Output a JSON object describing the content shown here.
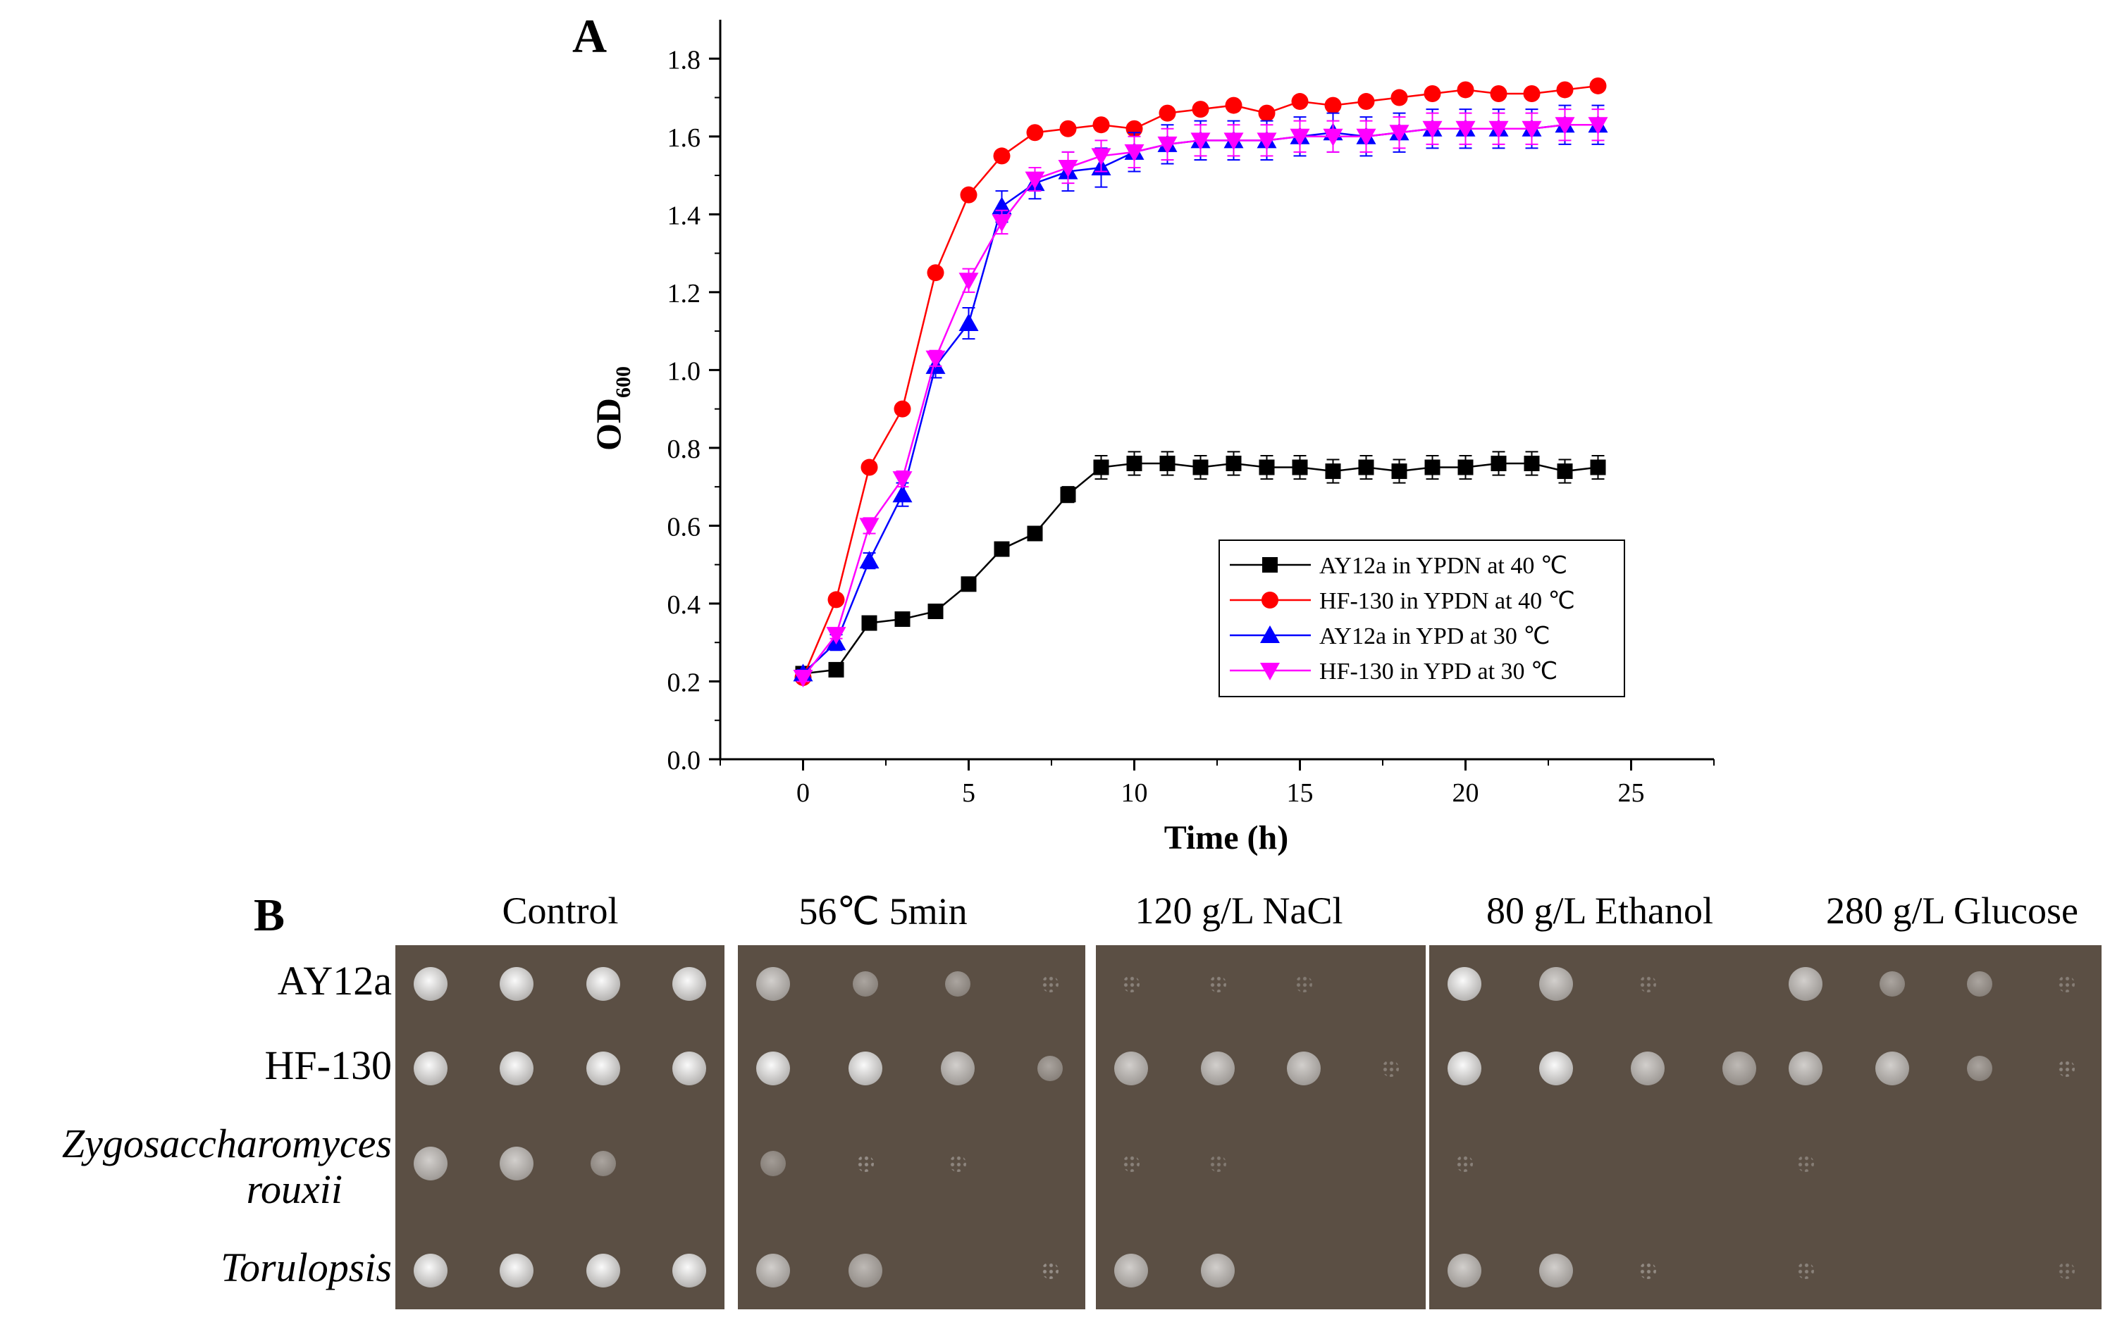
{
  "panel_a_letter": "A",
  "panel_b_letter": "B",
  "chart_data": {
    "type": "line",
    "title": "",
    "xlabel": "Time (h)",
    "ylabel": "OD",
    "ylabel_sub": "600",
    "xlim": [
      -2.5,
      27.5
    ],
    "ylim": [
      0,
      1.9
    ],
    "xticks": [
      0,
      5,
      10,
      15,
      20,
      25
    ],
    "yticks": [
      0.0,
      0.2,
      0.4,
      0.6,
      0.8,
      1.0,
      1.2,
      1.4,
      1.6,
      1.8
    ],
    "ytick_labels": [
      "0.0",
      "0.2",
      "0.4",
      "0.6",
      "0.8",
      "1.0",
      "1.2",
      "1.4",
      "1.6",
      "1.8"
    ],
    "x": [
      0,
      1,
      2,
      3,
      4,
      5,
      6,
      7,
      8,
      9,
      10,
      11,
      12,
      13,
      14,
      15,
      16,
      17,
      18,
      19,
      20,
      21,
      22,
      23,
      24
    ],
    "legend_position": "bottom-right",
    "series": [
      {
        "name": "AY12a in YPDN at 40 ℃",
        "color": "#000000",
        "marker": "square",
        "values": [
          0.22,
          0.23,
          0.35,
          0.36,
          0.38,
          0.45,
          0.54,
          0.58,
          0.68,
          0.75,
          0.76,
          0.76,
          0.75,
          0.76,
          0.75,
          0.75,
          0.74,
          0.75,
          0.74,
          0.75,
          0.75,
          0.76,
          0.76,
          0.74,
          0.75
        ],
        "err": [
          0.0,
          0.0,
          0.0,
          0.0,
          0.0,
          0.0,
          0.0,
          0.0,
          0.02,
          0.03,
          0.03,
          0.03,
          0.03,
          0.03,
          0.03,
          0.03,
          0.03,
          0.03,
          0.03,
          0.03,
          0.03,
          0.03,
          0.03,
          0.03,
          0.03
        ]
      },
      {
        "name": "HF-130 in YPDN at 40 ℃",
        "color": "#ff0000",
        "marker": "circle",
        "values": [
          0.21,
          0.41,
          0.75,
          0.9,
          1.25,
          1.45,
          1.55,
          1.61,
          1.62,
          1.63,
          1.62,
          1.66,
          1.67,
          1.68,
          1.66,
          1.69,
          1.68,
          1.69,
          1.7,
          1.71,
          1.72,
          1.71,
          1.71,
          1.72,
          1.73
        ],
        "err": [
          0.0,
          0.0,
          0.0,
          0.0,
          0.0,
          0.0,
          0.0,
          0.0,
          0.01,
          0.01,
          0.01,
          0.01,
          0.01,
          0.01,
          0.01,
          0.01,
          0.01,
          0.01,
          0.01,
          0.01,
          0.01,
          0.01,
          0.01,
          0.01,
          0.01
        ]
      },
      {
        "name": "AY12a in YPD at 30 ℃",
        "color": "#0000ff",
        "marker": "triangle-up",
        "values": [
          0.22,
          0.3,
          0.51,
          0.68,
          1.01,
          1.12,
          1.42,
          1.48,
          1.51,
          1.52,
          1.56,
          1.58,
          1.59,
          1.59,
          1.59,
          1.6,
          1.61,
          1.6,
          1.61,
          1.62,
          1.62,
          1.62,
          1.62,
          1.63,
          1.63
        ],
        "err": [
          0.01,
          0.02,
          0.02,
          0.03,
          0.03,
          0.04,
          0.04,
          0.04,
          0.05,
          0.05,
          0.05,
          0.05,
          0.05,
          0.05,
          0.05,
          0.05,
          0.05,
          0.05,
          0.05,
          0.05,
          0.05,
          0.05,
          0.05,
          0.05,
          0.05
        ]
      },
      {
        "name": "HF-130 in YPD at 30 ℃",
        "color": "#ff00ff",
        "marker": "triangle-down",
        "values": [
          0.21,
          0.32,
          0.6,
          0.72,
          1.03,
          1.23,
          1.38,
          1.49,
          1.52,
          1.55,
          1.56,
          1.58,
          1.59,
          1.59,
          1.59,
          1.6,
          1.6,
          1.6,
          1.61,
          1.62,
          1.62,
          1.62,
          1.62,
          1.63,
          1.63
        ],
        "err": [
          0.01,
          0.01,
          0.02,
          0.02,
          0.02,
          0.03,
          0.03,
          0.03,
          0.04,
          0.04,
          0.04,
          0.04,
          0.04,
          0.04,
          0.04,
          0.04,
          0.04,
          0.04,
          0.04,
          0.04,
          0.04,
          0.04,
          0.04,
          0.04,
          0.04
        ]
      }
    ]
  },
  "panel_b": {
    "columns": [
      "Control",
      "56℃ 5min",
      "120 g/L NaCl",
      "80 g/L Ethanol",
      "280 g/L Glucose"
    ],
    "rows": [
      {
        "label": "AY12a",
        "italic": false
      },
      {
        "label": "HF-130",
        "italic": false
      },
      {
        "label": "Zygosaccharomyces rouxii",
        "line1": "Zygosaccharomyces",
        "line2": "rouxii",
        "italic": true
      },
      {
        "label": "Torulopsis",
        "italic": true
      }
    ],
    "plate_color": "#5b4f44",
    "growth_levels": [
      [
        [
          3,
          3,
          3,
          3
        ],
        [
          2,
          1,
          1,
          0.3
        ],
        [
          0.3,
          0.3,
          0.1,
          0
        ],
        [
          3,
          2,
          0.2,
          0
        ],
        [
          2,
          1,
          1,
          0.2
        ]
      ],
      [
        [
          3,
          3,
          3,
          3
        ],
        [
          3,
          3,
          2,
          1
        ],
        [
          2,
          2,
          2,
          0.2
        ],
        [
          3,
          3,
          2,
          1.5
        ],
        [
          2,
          2,
          1,
          0.4
        ]
      ],
      [
        [
          2,
          2,
          1,
          0
        ],
        [
          0.8,
          0.6,
          0.4,
          0
        ],
        [
          0.3,
          0.1,
          0,
          0
        ],
        [
          0.3,
          0,
          0,
          0
        ],
        [
          0.2,
          0,
          0,
          0
        ]
      ],
      [
        [
          3,
          3,
          3,
          3
        ],
        [
          2,
          1.5,
          0,
          0.6
        ],
        [
          2,
          2,
          0,
          0
        ],
        [
          2,
          2,
          0.5,
          0
        ],
        [
          0.3,
          0,
          0,
          0.1
        ]
      ]
    ]
  }
}
